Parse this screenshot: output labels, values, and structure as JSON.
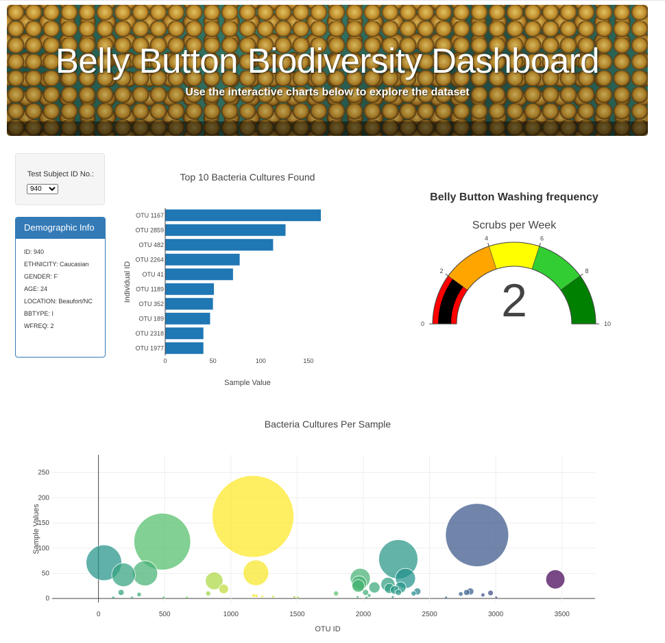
{
  "header": {
    "title": "Belly Button Biodiversity Dashboard",
    "subtitle": "Use the interactive charts below to explore the dataset"
  },
  "selector": {
    "label": "Test Subject ID No.:",
    "selected": "940"
  },
  "demographics": {
    "title": "Demographic Info",
    "lines": [
      "ID: 940",
      "ETHNICITY: Caucasian",
      "GENDER: F",
      "AGE: 24",
      "LOCATION: Beaufort/NC",
      "BBTYPE: I",
      "WFREQ: 2"
    ]
  },
  "colors": {
    "bar": "#1f77b4",
    "panel": "#337ab7",
    "gauge_steps": [
      "#ff0000",
      "#ffa500",
      "#ffff00",
      "#32cd32",
      "#008000"
    ],
    "gauge_bar": "#000000"
  },
  "chart_data": [
    {
      "type": "bar",
      "orientation": "horizontal",
      "title": "Top 10 Bacteria Cultures Found",
      "xlabel": "Sample Value",
      "ylabel": "Individual ID",
      "categories": [
        "OTU 1167",
        "OTU 2859",
        "OTU 482",
        "OTU 2264",
        "OTU 41",
        "OTU 1189",
        "OTU 352",
        "OTU 189",
        "OTU 2318",
        "OTU 1977"
      ],
      "values": [
        163,
        126,
        113,
        78,
        71,
        51,
        50,
        47,
        40,
        40
      ],
      "xlim": [
        0,
        163
      ],
      "xticks": [
        0,
        50,
        100,
        150
      ]
    },
    {
      "type": "gauge",
      "title": "Belly Button Washing frequency",
      "subtitle": "Scrubs per Week",
      "value": 2,
      "range": [
        0,
        10
      ],
      "ticks": [
        0,
        2,
        4,
        6,
        8,
        10
      ],
      "steps": [
        [
          0,
          2
        ],
        [
          2,
          4
        ],
        [
          4,
          6
        ],
        [
          6,
          8
        ],
        [
          8,
          10
        ]
      ]
    },
    {
      "type": "scatter",
      "title": "Bacteria Cultures Per Sample",
      "xlabel": "OTU ID",
      "ylabel": "Sample Values",
      "xlim": [
        -350,
        3750
      ],
      "ylim": [
        -8,
        285
      ],
      "xticks": [
        0,
        500,
        1000,
        1500,
        2000,
        2500,
        3000,
        3500
      ],
      "yticks": [
        0,
        50,
        100,
        150,
        200,
        250
      ],
      "grid": true,
      "marker_size": "sample value",
      "color_scale": "viridis by OTU ID",
      "points": [
        {
          "x": 41,
          "y": 71
        },
        {
          "x": 189,
          "y": 47
        },
        {
          "x": 352,
          "y": 50
        },
        {
          "x": 482,
          "y": 113
        },
        {
          "x": 1167,
          "y": 163
        },
        {
          "x": 1189,
          "y": 51
        },
        {
          "x": 2264,
          "y": 78
        },
        {
          "x": 2859,
          "y": 126
        },
        {
          "x": 3450,
          "y": 38
        },
        {
          "x": 874,
          "y": 35
        },
        {
          "x": 946,
          "y": 19
        },
        {
          "x": 1977,
          "y": 40
        },
        {
          "x": 1968,
          "y": 30
        },
        {
          "x": 1962,
          "y": 25
        },
        {
          "x": 2186,
          "y": 28
        },
        {
          "x": 2318,
          "y": 40
        },
        {
          "x": 2084,
          "y": 22
        },
        {
          "x": 2197,
          "y": 20
        },
        {
          "x": 2281,
          "y": 22
        },
        {
          "x": 2236,
          "y": 17
        },
        {
          "x": 2265,
          "y": 12
        },
        {
          "x": 2017,
          "y": 12
        },
        {
          "x": 2408,
          "y": 14
        },
        {
          "x": 2380,
          "y": 10
        },
        {
          "x": 2780,
          "y": 12
        },
        {
          "x": 2808,
          "y": 14
        },
        {
          "x": 2736,
          "y": 9
        },
        {
          "x": 2961,
          "y": 11
        },
        {
          "x": 2903,
          "y": 7
        },
        {
          "x": 171,
          "y": 12
        },
        {
          "x": 307,
          "y": 8
        },
        {
          "x": 829,
          "y": 10
        },
        {
          "x": 1794,
          "y": 10
        },
        {
          "x": 1173,
          "y": 6
        },
        {
          "x": 2044,
          "y": 6
        },
        {
          "x": 1319,
          "y": 4
        },
        {
          "x": 1237,
          "y": 4
        },
        {
          "x": 1193,
          "y": 5
        },
        {
          "x": 1479,
          "y": 3
        },
        {
          "x": 2222,
          "y": 3
        },
        {
          "x": 112,
          "y": 2
        },
        {
          "x": 254,
          "y": 2
        },
        {
          "x": 493,
          "y": 2
        },
        {
          "x": 667,
          "y": 2
        },
        {
          "x": 1505,
          "y": 2
        },
        {
          "x": 1957,
          "y": 3
        },
        {
          "x": 2024,
          "y": 2
        },
        {
          "x": 2625,
          "y": 2
        },
        {
          "x": 3003,
          "y": 2
        }
      ]
    }
  ]
}
